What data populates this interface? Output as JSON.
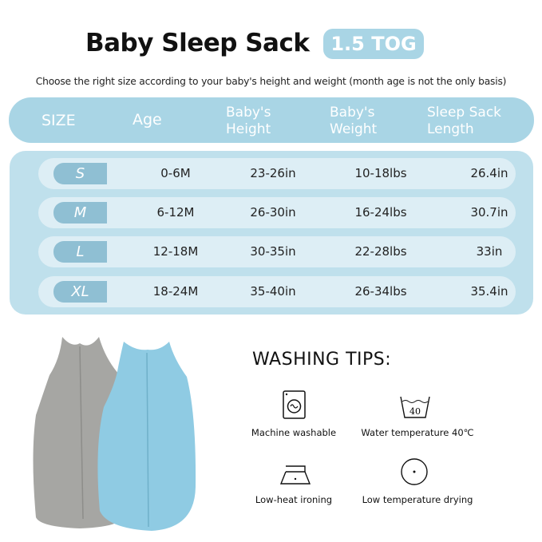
{
  "title": "Baby Sleep Sack",
  "badge": "1.5 TOG",
  "subtitle": "Choose the right size according to your baby's height and weight (month age is not the only basis)",
  "headers": [
    "SIZE",
    "Age",
    "Baby's\nHeight",
    "Baby's\nWeight",
    "Sleep Sack\nLength"
  ],
  "header_lines": {
    "h2a": "Baby's",
    "h2b": "Height",
    "h3a": "Baby's",
    "h3b": "Weight",
    "h4a": "Sleep Sack",
    "h4b": "Length"
  },
  "rows": [
    {
      "size": "S",
      "age": "0-6M",
      "height": "23-26in",
      "weight": "10-18lbs",
      "length": "26.4in"
    },
    {
      "size": "M",
      "age": "6-12M",
      "height": "26-30in",
      "weight": "16-24lbs",
      "length": "30.7in"
    },
    {
      "size": "L",
      "age": "12-18M",
      "height": "30-35in",
      "weight": "22-28lbs",
      "length": "33in"
    },
    {
      "size": "XL",
      "age": "18-24M",
      "height": "35-40in",
      "weight": "26-34lbs",
      "length": "35.4in"
    }
  ],
  "washing": {
    "title": "WASHING TIPS:",
    "tips": [
      {
        "icon": "washing-machine-icon",
        "label": "Machine washable"
      },
      {
        "icon": "wash-basin-40-icon",
        "label": "Water temperature 40℃",
        "value": "40"
      },
      {
        "icon": "iron-low-heat-icon",
        "label": "Low-heat ironing"
      },
      {
        "icon": "tumble-dry-low-icon",
        "label": "Low temperature drying"
      }
    ]
  },
  "colors": {
    "header": "#a9d5e5",
    "panel": "#bfe0ec",
    "row": "#ddeef5",
    "size_pill": "#8fbfd3",
    "grey_sack": "#a6a6a3",
    "blue_sack": "#8fcbe3"
  }
}
